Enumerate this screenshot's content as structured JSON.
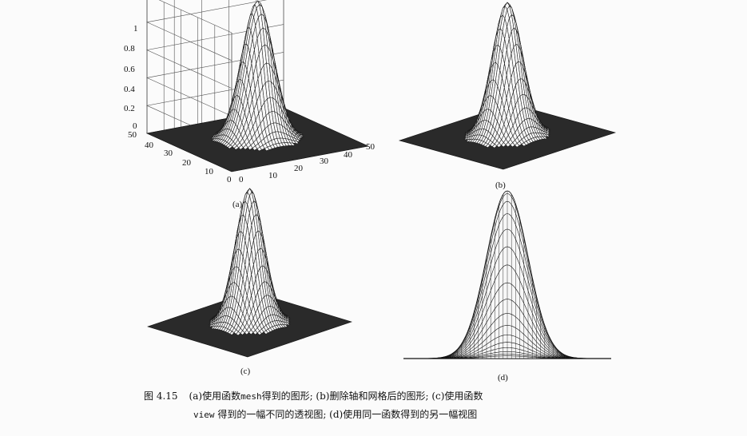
{
  "figure": {
    "panels": [
      {
        "id": "a",
        "label": "(a)"
      },
      {
        "id": "b",
        "label": "(b)"
      },
      {
        "id": "c",
        "label": "(c)"
      },
      {
        "id": "d",
        "label": "(d)"
      }
    ],
    "caption": {
      "number": "图 4.15",
      "line1_a": "(a)使用函数",
      "line1_code": "mesh",
      "line1_b": "得到的图形; (b)删除轴和网格后的图形; (c)使用函数",
      "line2_code": "view",
      "line2_b": " 得到的一幅不同的透视图; (d)使用同一函数得到的另一幅视图"
    }
  },
  "chart_data": [
    {
      "type": "surface",
      "panel": "a",
      "z_ticks": [
        "0",
        "0.2",
        "0.4",
        "0.6",
        "0.8",
        "1"
      ],
      "x_ticks": [
        "0",
        "10",
        "20",
        "30",
        "40",
        "50"
      ],
      "y_ticks": [
        "0",
        "10",
        "20",
        "30",
        "40",
        "50"
      ],
      "zlim": [
        0,
        1
      ],
      "xlim": [
        0,
        50
      ],
      "ylim": [
        0,
        50
      ],
      "grid": true,
      "grid_size": 50,
      "peak": 1,
      "center": [
        25,
        25
      ],
      "sigma": 5
    },
    {
      "type": "surface",
      "panel": "b",
      "axes": false,
      "grid": false,
      "peak": 1,
      "center": [
        25,
        25
      ],
      "sigma": 5
    },
    {
      "type": "surface",
      "panel": "c",
      "axes": false,
      "grid": false,
      "peak": 1,
      "center": [
        25,
        25
      ],
      "sigma": 5
    },
    {
      "type": "surface",
      "panel": "d",
      "axes": false,
      "grid": false,
      "peak": 1,
      "center": [
        25,
        25
      ],
      "sigma": 5
    }
  ]
}
